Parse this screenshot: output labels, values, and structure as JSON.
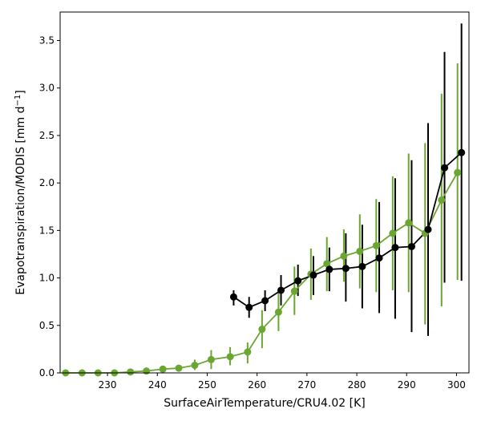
{
  "chart_data": {
    "type": "line",
    "title": "",
    "xlabel": "SurfaceAirTemperature/CRU4.02 [K]",
    "ylabel": {
      "prefix": "Evapotranspiration/MODIS [mm d",
      "superscript": "−1",
      "suffix": "]"
    },
    "xlim": [
      220.5,
      302.5
    ],
    "ylim": [
      0,
      3.8
    ],
    "xticks": [
      230,
      240,
      250,
      260,
      270,
      280,
      290,
      300
    ],
    "yticks": [
      0.0,
      0.5,
      1.0,
      1.5,
      2.0,
      2.5,
      3.0,
      3.5
    ],
    "xtick_labels": [
      "230",
      "240",
      "250",
      "260",
      "270",
      "280",
      "290",
      "300"
    ],
    "ytick_labels": [
      "0.0",
      "0.5",
      "1.0",
      "1.5",
      "2.0",
      "2.5",
      "3.0",
      "3.5"
    ],
    "grid": false,
    "legend": false,
    "series": [
      {
        "color": "#6aa631",
        "x": [
          221.6,
          224.9,
          228.1,
          231.4,
          234.6,
          237.8,
          241.1,
          244.3,
          247.5,
          250.8,
          254.6,
          258.1,
          261.0,
          264.3,
          267.5,
          270.8,
          274.0,
          277.4,
          280.6,
          283.9,
          287.2,
          290.4,
          293.7,
          297.0,
          300.2
        ],
        "y": [
          0.0,
          0.0,
          0.0,
          0.0,
          0.01,
          0.02,
          0.04,
          0.05,
          0.08,
          0.14,
          0.17,
          0.22,
          0.46,
          0.64,
          0.86,
          1.04,
          1.15,
          1.23,
          1.28,
          1.34,
          1.47,
          1.58,
          1.47,
          1.82,
          2.11
        ],
        "err_low": [
          0.0,
          0.0,
          0.0,
          0.0,
          0.0,
          0.0,
          0.02,
          0.03,
          0.03,
          0.04,
          0.08,
          0.1,
          0.26,
          0.44,
          0.61,
          0.77,
          0.86,
          0.96,
          0.89,
          0.85,
          0.87,
          0.85,
          0.51,
          0.7,
          0.98
        ],
        "err_high": [
          0.0,
          0.01,
          0.01,
          0.01,
          0.02,
          0.03,
          0.05,
          0.08,
          0.14,
          0.24,
          0.27,
          0.32,
          0.66,
          0.84,
          1.12,
          1.31,
          1.43,
          1.51,
          1.67,
          1.83,
          2.07,
          2.31,
          2.42,
          2.94,
          3.26
        ]
      },
      {
        "color": "#000000",
        "x": [
          255.3,
          258.4,
          261.6,
          264.8,
          268.2,
          271.3,
          274.5,
          277.8,
          281.1,
          284.5,
          287.7,
          291.0,
          294.3,
          297.6,
          301.0
        ],
        "y": [
          0.8,
          0.69,
          0.76,
          0.87,
          0.97,
          1.03,
          1.09,
          1.1,
          1.12,
          1.21,
          1.32,
          1.33,
          1.51,
          2.16,
          2.32
        ],
        "err_low": [
          0.71,
          0.58,
          0.65,
          0.71,
          0.81,
          0.82,
          0.86,
          0.75,
          0.68,
          0.63,
          0.57,
          0.43,
          0.39,
          0.95,
          0.97
        ],
        "err_high": [
          0.87,
          0.8,
          0.87,
          1.03,
          1.14,
          1.23,
          1.32,
          1.47,
          1.56,
          1.8,
          2.05,
          2.24,
          2.63,
          3.38,
          3.68
        ]
      }
    ]
  }
}
